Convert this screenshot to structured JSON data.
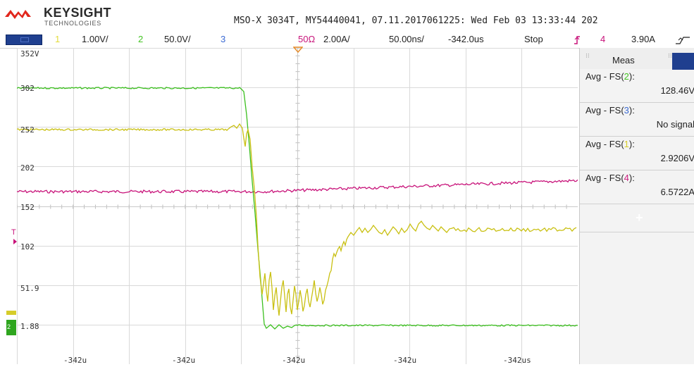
{
  "header": {
    "brand": "KEYSIGHT",
    "brand_sub": "TECHNOLOGIES",
    "scope_id": "MSO-X 3034T, MY54440041, 07.11.2017061225: Wed Feb 03 13:33:44 202"
  },
  "statusbar": {
    "ch1_num": "1",
    "ch1_scale": "1.00V/",
    "ch2_num": "2",
    "ch2_scale": "50.0V/",
    "ch3_num": "3",
    "impedance": "50Ω",
    "ch4_scale": "2.00A/",
    "timebase": "50.00ns/",
    "delay": "-342.0us",
    "run_state": "Stop",
    "trig_channel": "4",
    "trig_level": "3.90A",
    "trig_icon": "trigger-edge-icon",
    "slope_icon": "rising-edge-icon"
  },
  "waveform": {
    "y_labels": [
      "352V",
      "302",
      "252",
      "202",
      "152",
      "102",
      "51.9",
      "1.88"
    ],
    "x_labels": [
      "-342u",
      "-342u",
      "-342u",
      "-342u",
      "-342us"
    ],
    "trigger_marker": "T"
  },
  "measurements": {
    "panel_title": "Meas",
    "items": [
      {
        "prefix": "Avg - FS(",
        "ch": "2",
        "suffix": "):",
        "value": "128.46V",
        "ch_color": "#44c424"
      },
      {
        "prefix": "Avg - FS(",
        "ch": "3",
        "suffix": "):",
        "value": "No signal",
        "ch_color": "#3c6bd4"
      },
      {
        "prefix": "Avg - FS(",
        "ch": "1",
        "suffix": "):",
        "value": "2.9206V",
        "ch_color": "#d6cc2a"
      },
      {
        "prefix": "Avg - FS(",
        "ch": "4",
        "suffix": "):",
        "value": "6.5722A",
        "ch_color": "#cc1b7f"
      }
    ],
    "add_label": "+"
  },
  "colors": {
    "ch1": "#c9c012",
    "ch2": "#3bbf1e",
    "ch3": "#3c6bd4",
    "ch4": "#c8137a",
    "brand_red": "#e1261c",
    "run_blue": "#1f3f8f",
    "trigger_orange": "#e58b2a"
  }
}
